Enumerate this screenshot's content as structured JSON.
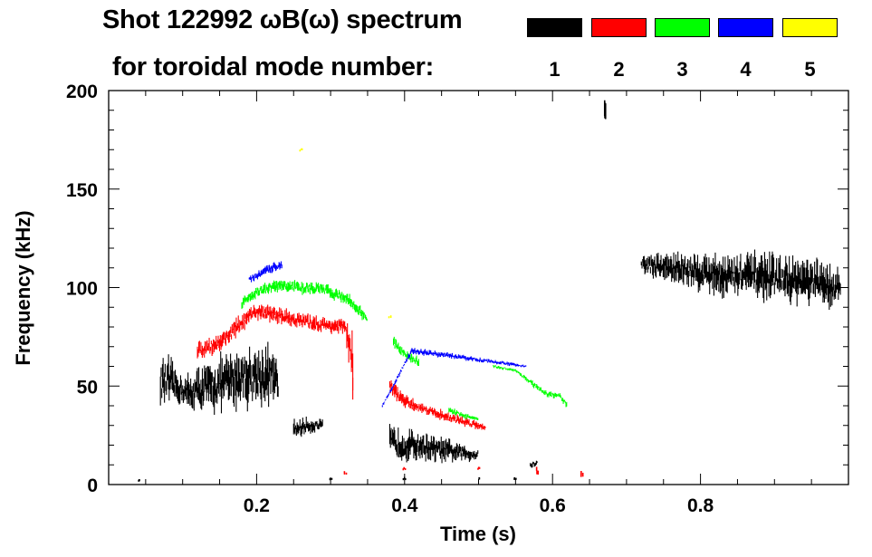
{
  "chart_data": {
    "type": "scatter",
    "title_line1": "Shot 122992 ωB(ω) spectrum",
    "title_line2": "for toroidal mode number:",
    "xlabel": "Time (s)",
    "ylabel": "Frequency (kHz)",
    "xlim": [
      0,
      1.0
    ],
    "ylim": [
      0,
      200
    ],
    "xticks": [
      0.2,
      0.4,
      0.6,
      0.8
    ],
    "xtick_labels": [
      "0.2",
      "0.4",
      "0.6",
      "0.8"
    ],
    "yticks": [
      0,
      50,
      100,
      150,
      200
    ],
    "ytick_labels": [
      "0",
      "50",
      "100",
      "150",
      "200"
    ],
    "legend": [
      {
        "label": "1",
        "color": "#000000"
      },
      {
        "label": "2",
        "color": "#ff0000"
      },
      {
        "label": "3",
        "color": "#00ff00"
      },
      {
        "label": "4",
        "color": "#0000ff"
      },
      {
        "label": "5",
        "color": "#ffff00"
      }
    ],
    "series": [
      {
        "name": "1",
        "color": "#000000",
        "segments": [
          [
            [
              0.07,
              52,
              14
            ],
            [
              0.08,
              52,
              16
            ],
            [
              0.09,
              50,
              12
            ],
            [
              0.1,
              48,
              10
            ],
            [
              0.11,
              46,
              12
            ],
            [
              0.12,
              48,
              14
            ],
            [
              0.14,
              50,
              16
            ],
            [
              0.16,
              52,
              18
            ],
            [
              0.18,
              55,
              18
            ],
            [
              0.2,
              55,
              20
            ],
            [
              0.22,
              55,
              18
            ],
            [
              0.23,
              50,
              12
            ]
          ],
          [
            [
              0.25,
              28,
              6
            ],
            [
              0.27,
              30,
              5
            ],
            [
              0.29,
              30,
              4
            ]
          ],
          [
            [
              0.38,
              22,
              10
            ],
            [
              0.4,
              20,
              10
            ],
            [
              0.42,
              20,
              9
            ],
            [
              0.44,
              18,
              8
            ],
            [
              0.46,
              17,
              7
            ],
            [
              0.48,
              16,
              5
            ],
            [
              0.5,
              15,
              4
            ]
          ],
          [
            [
              0.57,
              10,
              2
            ],
            [
              0.58,
              11,
              2
            ]
          ],
          [
            [
              0.72,
              112,
              6
            ],
            [
              0.76,
              110,
              10
            ],
            [
              0.8,
              108,
              12
            ],
            [
              0.84,
              106,
              14
            ],
            [
              0.88,
              106,
              14
            ],
            [
              0.92,
              104,
              14
            ],
            [
              0.96,
              102,
              14
            ],
            [
              0.99,
              100,
              12
            ]
          ],
          [
            [
              0.04,
              2,
              1
            ],
            [
              0.3,
              3,
              1
            ],
            [
              0.4,
              3,
              1
            ],
            [
              0.5,
              3,
              1
            ],
            [
              0.55,
              3,
              1
            ]
          ],
          [
            [
              0.672,
              190,
              8
            ]
          ]
        ]
      },
      {
        "name": "2",
        "color": "#ff0000",
        "segments": [
          [
            [
              0.12,
              68,
              5
            ],
            [
              0.15,
              72,
              6
            ],
            [
              0.18,
              82,
              6
            ],
            [
              0.2,
              88,
              5
            ],
            [
              0.23,
              86,
              5
            ],
            [
              0.26,
              83,
              5
            ],
            [
              0.29,
              81,
              5
            ],
            [
              0.32,
              80,
              5
            ],
            [
              0.33,
              60,
              20
            ],
            [
              0.33,
              42,
              4
            ]
          ],
          [
            [
              0.38,
              50,
              6
            ],
            [
              0.4,
              42,
              4
            ],
            [
              0.43,
              38,
              3
            ],
            [
              0.46,
              34,
              3
            ],
            [
              0.49,
              31,
              3
            ],
            [
              0.51,
              29,
              2
            ]
          ],
          [
            [
              0.32,
              6,
              1
            ],
            [
              0.4,
              8,
              1
            ],
            [
              0.5,
              8,
              1
            ],
            [
              0.58,
              7,
              2
            ],
            [
              0.64,
              5,
              2
            ]
          ]
        ]
      },
      {
        "name": "3",
        "color": "#00ff00",
        "segments": [
          [
            [
              0.18,
              92,
              3
            ],
            [
              0.2,
              98,
              4
            ],
            [
              0.23,
              101,
              4
            ],
            [
              0.26,
              100,
              4
            ],
            [
              0.29,
              99,
              4
            ],
            [
              0.32,
              95,
              4
            ],
            [
              0.34,
              88,
              4
            ],
            [
              0.35,
              84,
              2
            ]
          ],
          [
            [
              0.385,
              72,
              4
            ],
            [
              0.4,
              66,
              3
            ],
            [
              0.42,
              62,
              3
            ]
          ],
          [
            [
              0.46,
              38,
              2
            ],
            [
              0.48,
              35,
              2
            ],
            [
              0.5,
              33,
              1
            ]
          ],
          [
            [
              0.52,
              60,
              1
            ],
            [
              0.55,
              58,
              1
            ],
            [
              0.57,
              52,
              2
            ],
            [
              0.59,
              46,
              2
            ],
            [
              0.61,
              45,
              2
            ],
            [
              0.62,
              40,
              2
            ]
          ]
        ]
      },
      {
        "name": "4",
        "color": "#0000ff",
        "segments": [
          [
            [
              0.19,
              104,
              2
            ],
            [
              0.22,
              110,
              3
            ],
            [
              0.235,
              112,
              3
            ]
          ],
          [
            [
              0.37,
              40,
              1
            ],
            [
              0.41,
              68,
              2
            ],
            [
              0.565,
              60,
              1
            ]
          ]
        ]
      },
      {
        "name": "5",
        "color": "#ffff00",
        "segments": [
          [
            [
              0.26,
              170,
              1
            ],
            [
              0.38,
              85,
              1
            ]
          ]
        ]
      }
    ]
  }
}
